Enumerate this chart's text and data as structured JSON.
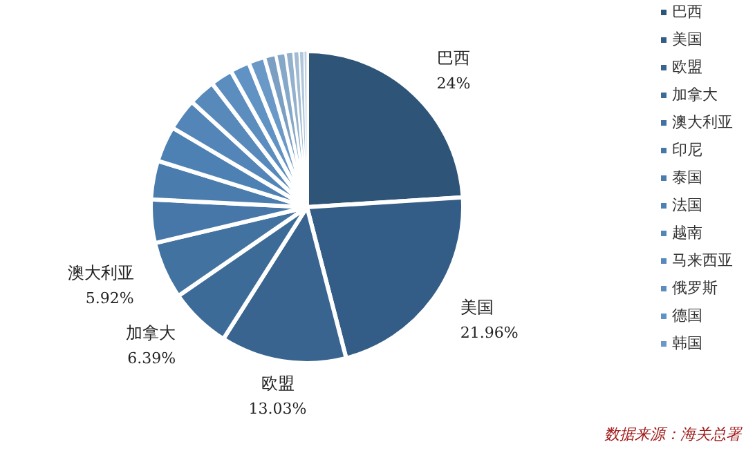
{
  "chart_data": {
    "type": "pie",
    "categories": [
      "巴西",
      "美国",
      "欧盟",
      "加拿大",
      "澳大利亚",
      "印尼",
      "泰国",
      "法国",
      "越南",
      "马来西亚",
      "俄罗斯",
      "德国",
      "韩国",
      null,
      null,
      null,
      null,
      null,
      null
    ],
    "values": [
      24,
      21.96,
      13.03,
      6.39,
      5.92,
      4.5,
      4.0,
      3.7,
      3.3,
      2.8,
      2.3,
      2.0,
      1.7,
      1.2,
      1.0,
      0.8,
      0.6,
      0.5,
      0.3
    ],
    "value_labels": [
      "24%",
      "21.96%",
      "13.03%",
      "6.39%",
      "5.92%",
      null,
      null,
      null,
      null,
      null,
      null,
      null,
      null,
      null,
      null,
      null,
      null,
      null,
      null
    ],
    "colors": [
      "#2e5478",
      "#335d86",
      "#38648f",
      "#3c6b98",
      "#4272a0",
      "#4677a8",
      "#4a7cae",
      "#4e81b3",
      "#5385b8",
      "#5789bb",
      "#5b8dbf",
      "#6092c3",
      "#6a98c7",
      "#7a9fc2",
      "#86a8c8",
      "#93b1cd",
      "#a1bbd3",
      "#b0c6da",
      "#c0d2e2"
    ],
    "legend": "right",
    "annotations": [
      "数据来源：海关总署"
    ]
  }
}
